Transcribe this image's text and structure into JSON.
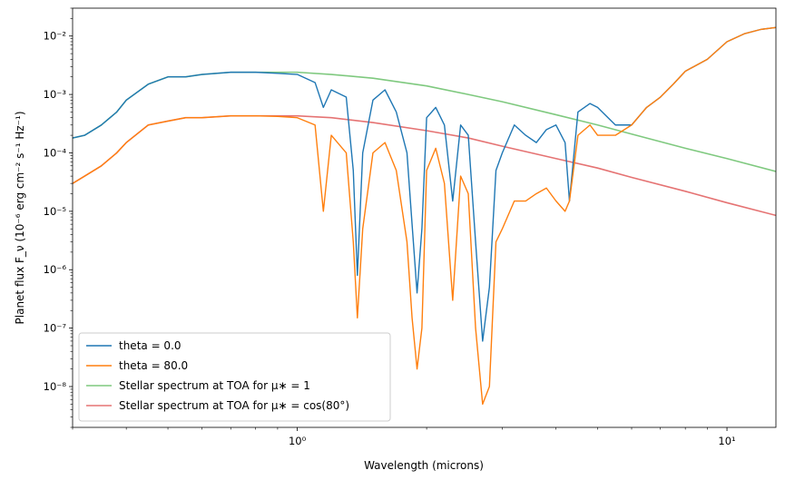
{
  "chart_data": {
    "type": "line",
    "xscale": "log",
    "yscale": "log",
    "xlim": [
      0.3,
      13.0
    ],
    "ylim": [
      2e-09,
      0.03
    ],
    "xlabel": "Wavelength (microns)",
    "ylabel": "Planet flux F_ν (10⁻⁶ erg cm⁻² s⁻¹ Hz⁻¹)",
    "x_ticks": [
      {
        "value": 1,
        "label": "10⁰"
      },
      {
        "value": 10,
        "label": "10¹"
      }
    ],
    "y_ticks": [
      {
        "value": 1e-08,
        "label": "10⁻⁸"
      },
      {
        "value": 1e-07,
        "label": "10⁻⁷"
      },
      {
        "value": 1e-06,
        "label": "10⁻⁶"
      },
      {
        "value": 1e-05,
        "label": "10⁻⁵"
      },
      {
        "value": 0.0001,
        "label": "10⁻⁴"
      },
      {
        "value": 0.001,
        "label": "10⁻³"
      },
      {
        "value": 0.01,
        "label": "10⁻²"
      }
    ],
    "grid": false,
    "legend_position": "lower-left",
    "series": [
      {
        "name": "theta = 0.0",
        "color": "#1f77b4",
        "x": [
          0.3,
          0.32,
          0.35,
          0.38,
          0.4,
          0.45,
          0.5,
          0.55,
          0.6,
          0.7,
          0.8,
          0.9,
          1.0,
          1.1,
          1.15,
          1.2,
          1.3,
          1.35,
          1.38,
          1.42,
          1.5,
          1.6,
          1.7,
          1.8,
          1.85,
          1.9,
          1.95,
          2.0,
          2.1,
          2.2,
          2.3,
          2.4,
          2.5,
          2.6,
          2.7,
          2.8,
          2.9,
          3.0,
          3.2,
          3.4,
          3.6,
          3.8,
          4.0,
          4.2,
          4.3,
          4.5,
          4.8,
          5.0,
          5.5,
          6.0,
          6.5,
          7.0,
          7.5,
          8.0,
          9.0,
          10.0,
          11.0,
          12.0,
          13.0
        ],
        "y": [
          0.00018,
          0.0002,
          0.0003,
          0.0005,
          0.0008,
          0.0015,
          0.002,
          0.002,
          0.0022,
          0.0024,
          0.0024,
          0.0023,
          0.0022,
          0.0016,
          0.0006,
          0.0012,
          0.0009,
          5e-05,
          8e-07,
          0.0001,
          0.0008,
          0.0012,
          0.0005,
          0.0001,
          6e-06,
          4e-07,
          5e-06,
          0.0004,
          0.0006,
          0.0003,
          1.5e-05,
          0.0003,
          0.0002,
          3e-06,
          6e-08,
          5e-07,
          5e-05,
          0.0001,
          0.0003,
          0.0002,
          0.00015,
          0.00025,
          0.0003,
          0.00015,
          1.5e-05,
          0.0005,
          0.0007,
          0.0006,
          0.0003,
          0.0003,
          0.0006,
          0.0009,
          0.0015,
          0.0025,
          0.004,
          0.008,
          0.011,
          0.013,
          0.014
        ]
      },
      {
        "name": "theta = 80.0",
        "color": "#ff7f0e",
        "x": [
          0.3,
          0.32,
          0.35,
          0.38,
          0.4,
          0.45,
          0.5,
          0.55,
          0.6,
          0.7,
          0.8,
          0.9,
          1.0,
          1.1,
          1.15,
          1.2,
          1.3,
          1.35,
          1.38,
          1.42,
          1.5,
          1.6,
          1.7,
          1.8,
          1.85,
          1.9,
          1.95,
          2.0,
          2.1,
          2.2,
          2.3,
          2.4,
          2.5,
          2.6,
          2.7,
          2.8,
          2.9,
          3.0,
          3.2,
          3.4,
          3.6,
          3.8,
          4.0,
          4.2,
          4.3,
          4.5,
          4.8,
          5.0,
          5.5,
          6.0,
          6.5,
          7.0,
          7.5,
          8.0,
          9.0,
          10.0,
          11.0,
          12.0,
          13.0
        ],
        "y": [
          3e-05,
          4e-05,
          6e-05,
          0.0001,
          0.00015,
          0.0003,
          0.00035,
          0.0004,
          0.0004,
          0.00043,
          0.00043,
          0.00042,
          0.0004,
          0.0003,
          1e-05,
          0.0002,
          0.0001,
          3e-06,
          1.5e-07,
          5e-06,
          0.0001,
          0.00015,
          5e-05,
          3e-06,
          1.5e-07,
          2e-08,
          1e-07,
          5e-05,
          0.00012,
          3e-05,
          3e-07,
          4e-05,
          2e-05,
          1e-07,
          5e-09,
          1e-08,
          3e-06,
          5e-06,
          1.5e-05,
          1.5e-05,
          2e-05,
          2.5e-05,
          1.5e-05,
          1e-05,
          1.5e-05,
          0.0002,
          0.0003,
          0.0002,
          0.0002,
          0.0003,
          0.0006,
          0.0009,
          0.0015,
          0.0025,
          0.004,
          0.008,
          0.011,
          0.013,
          0.014
        ]
      },
      {
        "name": "Stellar spectrum at TOA for μ∗ = 1",
        "color": "#7fc97f",
        "x": [
          0.3,
          0.32,
          0.35,
          0.38,
          0.4,
          0.45,
          0.5,
          0.55,
          0.6,
          0.7,
          0.8,
          0.9,
          1.0,
          1.2,
          1.5,
          2.0,
          2.5,
          3.0,
          4.0,
          5.0,
          6.0,
          8.0,
          10.0,
          13.0
        ],
        "y": [
          0.00018,
          0.0002,
          0.0003,
          0.0005,
          0.0008,
          0.0015,
          0.002,
          0.002,
          0.0022,
          0.0024,
          0.0024,
          0.0024,
          0.0024,
          0.0022,
          0.0019,
          0.0014,
          0.001,
          0.00075,
          0.00045,
          0.0003,
          0.00021,
          0.00012,
          8e-05,
          4.8e-05
        ]
      },
      {
        "name": "Stellar spectrum at TOA for μ∗ = cos(80°)",
        "color": "#e57373",
        "x": [
          0.3,
          0.32,
          0.35,
          0.38,
          0.4,
          0.45,
          0.5,
          0.55,
          0.6,
          0.7,
          0.8,
          0.9,
          1.0,
          1.2,
          1.5,
          2.0,
          2.5,
          3.0,
          4.0,
          5.0,
          6.0,
          8.0,
          10.0,
          13.0
        ],
        "y": [
          3e-05,
          4e-05,
          6e-05,
          0.0001,
          0.00015,
          0.0003,
          0.00035,
          0.0004,
          0.0004,
          0.00043,
          0.00043,
          0.00043,
          0.00043,
          0.0004,
          0.00033,
          0.00024,
          0.00018,
          0.00013,
          8e-05,
          5.5e-05,
          3.8e-05,
          2.2e-05,
          1.4e-05,
          8.5e-06
        ]
      }
    ]
  }
}
